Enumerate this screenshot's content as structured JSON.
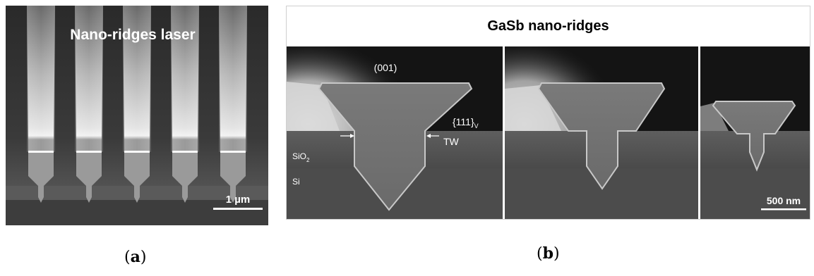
{
  "panel_a": {
    "title": "Nano-ridges laser",
    "scale_bar_label": "1 µm",
    "caption_open": "(",
    "caption_letter": "a",
    "caption_close": ")"
  },
  "panel_b": {
    "title": "GaSb nano-ridges",
    "label_001": "(001)",
    "label_111": "{111}",
    "label_111_sub": "V",
    "label_tw": "TW",
    "label_sio2": "SiO",
    "label_sio2_sub": "2",
    "label_si": "Si",
    "scale_bar_label": "500 nm",
    "caption_open": "(",
    "caption_letter": "b",
    "caption_close": ")"
  }
}
